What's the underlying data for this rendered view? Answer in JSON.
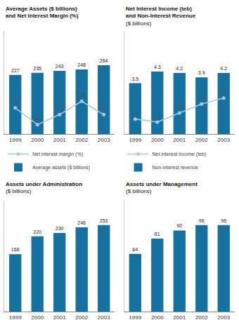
{
  "chart_data": [
    {
      "type": "bar",
      "title": "Average Assets ($ billions)\nand Net Interest Margin (%)",
      "categories": [
        "1999",
        "2000",
        "2001",
        "2002",
        "2003"
      ],
      "series": [
        {
          "name": "Average assets ($ billions)",
          "type": "bar",
          "color": "#1471a0",
          "values": [
            227,
            235,
            243,
            248,
            264
          ]
        },
        {
          "name": "Net interest margin (%)",
          "type": "line",
          "color": "#a8c8de",
          "axis": "y2",
          "marker": "circle",
          "line_style": "solid",
          "values": [
            1.95,
            1.85,
            1.91,
            1.99,
            1.91
          ]
        }
      ],
      "ylim": [
        0,
        396
      ],
      "y2lim": [
        1.794,
        2.41
      ],
      "data_labels": true,
      "tick_labels": "x",
      "grid": false,
      "legend": "bottom"
    },
    {
      "type": "bar",
      "title": "Net Interest Income (teb)\nand Non-Interest Revenue",
      "subtitle": "($ billions)",
      "categories": [
        "1999",
        "2000",
        "2001",
        "2002",
        "2003"
      ],
      "series": [
        {
          "name": "Non-interest revenue",
          "type": "bar",
          "color": "#1471a0",
          "values": [
            3.5,
            4.3,
            4.2,
            3.9,
            4.2
          ]
        },
        {
          "name": "Net interest income (teb)",
          "type": "line",
          "color": "#a8c8de",
          "axis": "y2",
          "marker": "circle",
          "line_style": "solid",
          "values": [
            4.4,
            4.3,
            4.6,
            4.9,
            5.1
          ]
        }
      ],
      "ylim": [
        0,
        7.095
      ],
      "y2lim": [
        3.9,
        7.34
      ],
      "data_labels": true,
      "tick_labels": "x",
      "grid": false,
      "legend": "bottom"
    },
    {
      "type": "bar",
      "title": "Assets under Administration",
      "subtitle": "($ billions)",
      "categories": [
        "1999",
        "2000",
        "2001",
        "2002",
        "2003"
      ],
      "values": [
        168,
        220,
        230,
        246,
        253
      ],
      "color": "#1471a0",
      "ylim": [
        0,
        323.84
      ],
      "data_labels": true,
      "tick_labels": "x",
      "grid": false
    },
    {
      "type": "bar",
      "title": "Assets under Management",
      "subtitle": "($ billions)",
      "categories": [
        "1999",
        "2000",
        "2001",
        "2002",
        "2003"
      ],
      "values": [
        64,
        81,
        90,
        96,
        96
      ],
      "color": "#1471a0",
      "ylim": [
        0,
        122.88
      ],
      "data_labels": true,
      "tick_labels": "x",
      "grid": false
    }
  ]
}
